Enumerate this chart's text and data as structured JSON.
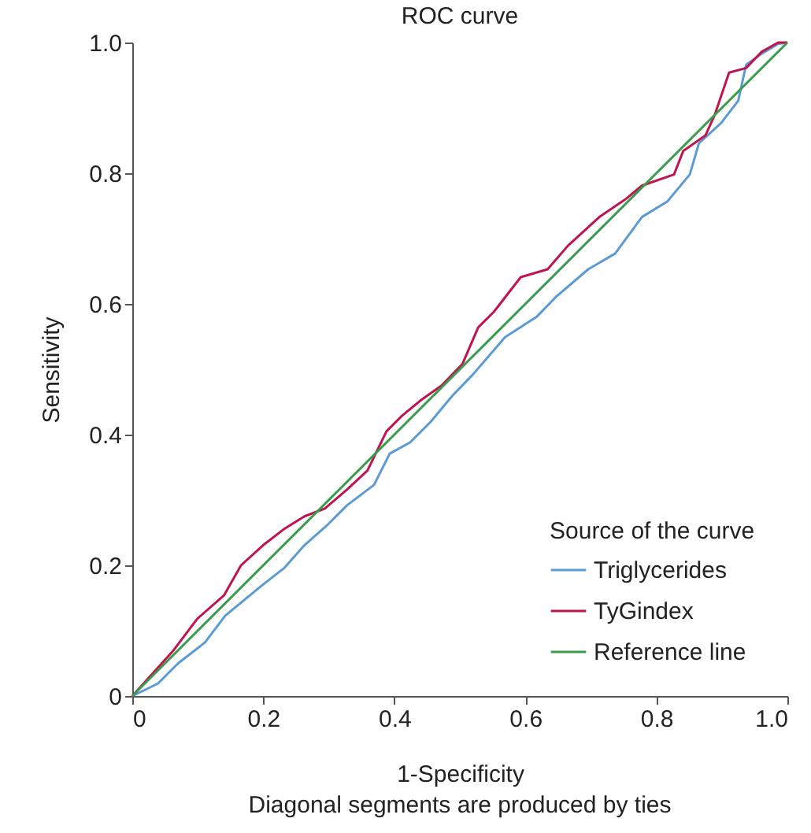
{
  "chart_data": {
    "type": "line",
    "title": "ROC curve",
    "xlabel": "1-Specificity",
    "ylabel": "Sensitivity",
    "legend_title": "Source of the curve",
    "annotations": [
      "Diagonal segments are produced by ties"
    ],
    "series": [
      {
        "name": "Triglycerides",
        "color": "#5b9bd5",
        "x": [
          0,
          0.039,
          0.07,
          0.111,
          0.142,
          0.2,
          0.231,
          0.263,
          0.296,
          0.328,
          0.369,
          0.393,
          0.424,
          0.455,
          0.489,
          0.52,
          0.569,
          0.617,
          0.648,
          0.696,
          0.737,
          0.778,
          0.817,
          0.851,
          0.865,
          0.899,
          0.925,
          0.937,
          0.961,
          0.986,
          1
        ],
        "values": [
          0,
          0.019,
          0.05,
          0.082,
          0.123,
          0.171,
          0.195,
          0.231,
          0.26,
          0.292,
          0.323,
          0.371,
          0.388,
          0.419,
          0.46,
          0.492,
          0.549,
          0.58,
          0.612,
          0.653,
          0.677,
          0.733,
          0.757,
          0.798,
          0.846,
          0.877,
          0.911,
          0.966,
          0.983,
          0.998,
          1
        ]
      },
      {
        "name": "TyGindex",
        "color": "#c0144c",
        "x": [
          0,
          0.063,
          0.099,
          0.14,
          0.166,
          0.2,
          0.231,
          0.263,
          0.294,
          0.328,
          0.359,
          0.388,
          0.412,
          0.441,
          0.472,
          0.504,
          0.528,
          0.552,
          0.593,
          0.634,
          0.665,
          0.713,
          0.754,
          0.778,
          0.827,
          0.841,
          0.875,
          0.889,
          0.911,
          0.937,
          0.961,
          0.986,
          1
        ],
        "values": [
          0,
          0.07,
          0.118,
          0.154,
          0.2,
          0.231,
          0.255,
          0.275,
          0.287,
          0.316,
          0.345,
          0.405,
          0.429,
          0.453,
          0.475,
          0.508,
          0.564,
          0.588,
          0.641,
          0.653,
          0.689,
          0.733,
          0.761,
          0.781,
          0.798,
          0.834,
          0.858,
          0.889,
          0.954,
          0.961,
          0.986,
          1,
          1
        ]
      },
      {
        "name": "Reference line",
        "color": "#3a9b4a",
        "x": [
          0,
          1
        ],
        "values": [
          0,
          1
        ]
      }
    ],
    "xlim": [
      0,
      1
    ],
    "ylim": [
      0,
      1
    ],
    "xticks": [
      0,
      0.2,
      0.4,
      0.6,
      0.8,
      {
        "value": 1,
        "label": "1.0"
      }
    ],
    "yticks": [
      0,
      0.2,
      0.4,
      0.6,
      0.8,
      {
        "value": 1,
        "label": "1.0"
      }
    ],
    "grid": false,
    "legend": "bottom right",
    "marker": "none",
    "line_style": "solid"
  }
}
